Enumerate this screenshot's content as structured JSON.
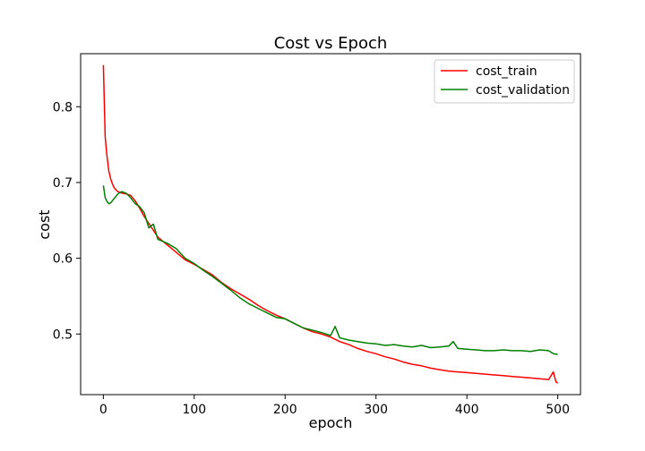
{
  "chart_data": {
    "type": "line",
    "title": "Cost vs Epoch",
    "xlabel": "epoch",
    "ylabel": "cost",
    "xlim": [
      -25,
      525
    ],
    "ylim": [
      0.42,
      0.87
    ],
    "x_ticks": [
      0,
      100,
      200,
      300,
      400,
      500
    ],
    "x_tick_labels": [
      "0",
      "100",
      "200",
      "300",
      "400",
      "500"
    ],
    "y_ticks": [
      0.5,
      0.6,
      0.7,
      0.8
    ],
    "y_tick_labels": [
      "0.5",
      "0.6",
      "0.7",
      "0.8"
    ],
    "grid": false,
    "legend_position": "top-right",
    "series": [
      {
        "name": "cost_train",
        "color": "#ff0000",
        "x": [
          0,
          2,
          4,
          6,
          8,
          10,
          12,
          14,
          16,
          20,
          25,
          30,
          35,
          40,
          45,
          50,
          60,
          70,
          80,
          90,
          100,
          110,
          120,
          130,
          140,
          150,
          160,
          170,
          180,
          190,
          200,
          210,
          220,
          230,
          240,
          250,
          260,
          270,
          280,
          290,
          300,
          310,
          320,
          330,
          340,
          350,
          360,
          370,
          380,
          390,
          400,
          410,
          420,
          430,
          440,
          450,
          460,
          470,
          480,
          490,
          495,
          498,
          500
        ],
        "y": [
          0.855,
          0.76,
          0.735,
          0.715,
          0.705,
          0.698,
          0.693,
          0.69,
          0.688,
          0.686,
          0.685,
          0.683,
          0.676,
          0.666,
          0.655,
          0.646,
          0.628,
          0.618,
          0.608,
          0.598,
          0.592,
          0.585,
          0.578,
          0.568,
          0.56,
          0.553,
          0.546,
          0.538,
          0.531,
          0.525,
          0.52,
          0.514,
          0.508,
          0.503,
          0.5,
          0.496,
          0.49,
          0.486,
          0.481,
          0.477,
          0.474,
          0.47,
          0.467,
          0.463,
          0.46,
          0.458,
          0.455,
          0.453,
          0.451,
          0.45,
          0.449,
          0.448,
          0.447,
          0.446,
          0.445,
          0.444,
          0.443,
          0.442,
          0.441,
          0.44,
          0.45,
          0.437,
          0.435
        ]
      },
      {
        "name": "cost_validation",
        "color": "#008000",
        "x": [
          0,
          2,
          4,
          6,
          8,
          10,
          12,
          14,
          16,
          20,
          25,
          30,
          35,
          40,
          45,
          50,
          55,
          60,
          70,
          80,
          90,
          100,
          110,
          120,
          130,
          140,
          150,
          160,
          170,
          180,
          190,
          200,
          210,
          220,
          230,
          240,
          250,
          255,
          260,
          270,
          280,
          290,
          300,
          310,
          320,
          330,
          340,
          350,
          360,
          370,
          380,
          385,
          390,
          400,
          410,
          420,
          430,
          440,
          450,
          460,
          470,
          480,
          490,
          495,
          500
        ],
        "y": [
          0.696,
          0.68,
          0.675,
          0.672,
          0.673,
          0.676,
          0.679,
          0.682,
          0.685,
          0.688,
          0.686,
          0.68,
          0.672,
          0.668,
          0.66,
          0.64,
          0.645,
          0.625,
          0.62,
          0.613,
          0.6,
          0.593,
          0.584,
          0.576,
          0.567,
          0.558,
          0.548,
          0.54,
          0.534,
          0.528,
          0.522,
          0.52,
          0.514,
          0.508,
          0.505,
          0.502,
          0.498,
          0.51,
          0.495,
          0.492,
          0.49,
          0.488,
          0.487,
          0.485,
          0.486,
          0.484,
          0.483,
          0.485,
          0.482,
          0.483,
          0.484,
          0.49,
          0.481,
          0.48,
          0.479,
          0.478,
          0.478,
          0.479,
          0.478,
          0.478,
          0.477,
          0.479,
          0.478,
          0.474,
          0.473
        ]
      }
    ]
  }
}
